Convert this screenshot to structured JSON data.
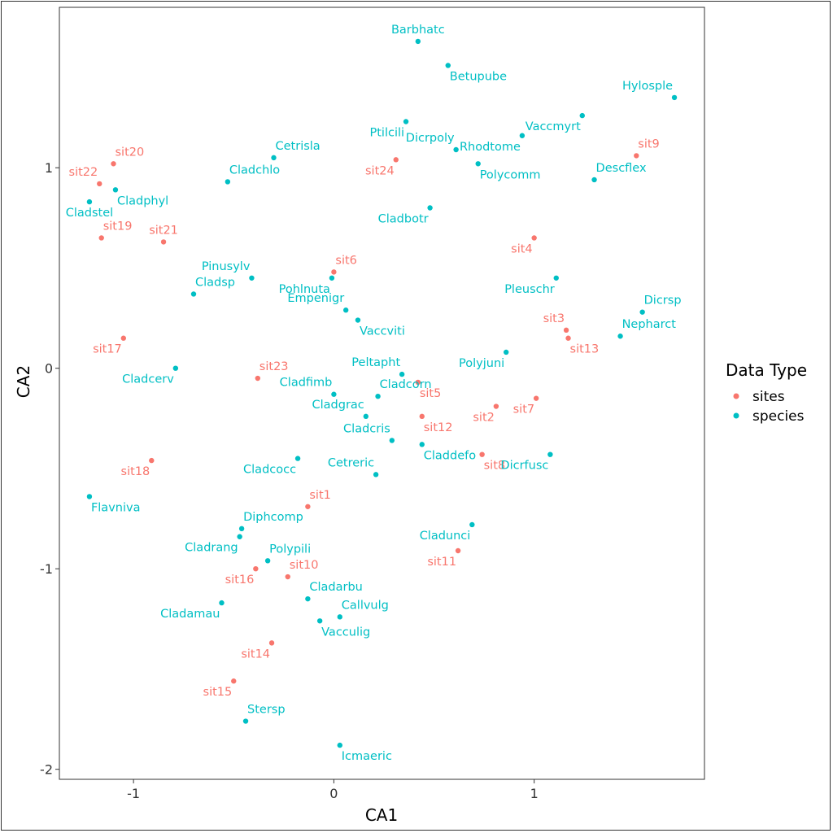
{
  "chart_data": {
    "type": "scatter",
    "title": "",
    "xlabel": "CA1",
    "ylabel": "CA2",
    "xlim": [
      -1.37,
      1.85
    ],
    "ylim": [
      -2.05,
      1.8
    ],
    "x_ticks": [
      -1,
      0,
      1
    ],
    "x_tick_labels": [
      "-1",
      "0",
      "1"
    ],
    "y_ticks": [
      -2,
      -1,
      0,
      1
    ],
    "y_tick_labels": [
      "-2",
      "-1",
      "0",
      "1"
    ],
    "grid": false,
    "legend": {
      "title": "Data Type",
      "placement": "right",
      "entries": [
        {
          "label": "sites",
          "color": "#f8766d"
        },
        {
          "label": "species",
          "color": "#00bfc4"
        }
      ]
    },
    "series": [
      {
        "name": "sites",
        "color": "#f8766d",
        "points": [
          {
            "label": "sit20",
            "x": -1.1,
            "y": 1.02,
            "label_pos": "above-right"
          },
          {
            "label": "sit22",
            "x": -1.17,
            "y": 0.92,
            "label_pos": "above-left"
          },
          {
            "label": "sit19",
            "x": -1.16,
            "y": 0.65,
            "label_pos": "above-right"
          },
          {
            "label": "sit21",
            "x": -0.85,
            "y": 0.63,
            "label_pos": "above"
          },
          {
            "label": "sit24",
            "x": 0.31,
            "y": 1.04,
            "label_pos": "below-left"
          },
          {
            "label": "sit9",
            "x": 1.51,
            "y": 1.06,
            "label_pos": "above-right"
          },
          {
            "label": "sit4",
            "x": 1.0,
            "y": 0.65,
            "label_pos": "below-left"
          },
          {
            "label": "sit6",
            "x": 0.0,
            "y": 0.48,
            "label_pos": "above-right"
          },
          {
            "label": "sit3",
            "x": 1.16,
            "y": 0.19,
            "label_pos": "above-left"
          },
          {
            "label": "sit13",
            "x": 1.17,
            "y": 0.15,
            "label_pos": "below-right"
          },
          {
            "label": "sit17",
            "x": -1.05,
            "y": 0.15,
            "label_pos": "below-left"
          },
          {
            "label": "sit23",
            "x": -0.38,
            "y": -0.05,
            "label_pos": "above-right"
          },
          {
            "label": "sit5",
            "x": 0.42,
            "y": -0.07,
            "label_pos": "below-right"
          },
          {
            "label": "sit7",
            "x": 1.01,
            "y": -0.15,
            "label_pos": "below-left"
          },
          {
            "label": "sit2",
            "x": 0.81,
            "y": -0.19,
            "label_pos": "below-left"
          },
          {
            "label": "sit12",
            "x": 0.44,
            "y": -0.24,
            "label_pos": "below-right"
          },
          {
            "label": "sit8",
            "x": 0.74,
            "y": -0.43,
            "label_pos": "below-right"
          },
          {
            "label": "sit18",
            "x": -0.91,
            "y": -0.46,
            "label_pos": "below-left"
          },
          {
            "label": "sit1",
            "x": -0.13,
            "y": -0.69,
            "label_pos": "above-right"
          },
          {
            "label": "sit11",
            "x": 0.62,
            "y": -0.91,
            "label_pos": "below-left"
          },
          {
            "label": "sit10",
            "x": -0.23,
            "y": -1.04,
            "label_pos": "above-right"
          },
          {
            "label": "sit16",
            "x": -0.39,
            "y": -1.0,
            "label_pos": "below-left"
          },
          {
            "label": "sit14",
            "x": -0.31,
            "y": -1.37,
            "label_pos": "below-left"
          },
          {
            "label": "sit15",
            "x": -0.5,
            "y": -1.56,
            "label_pos": "below-left"
          }
        ]
      },
      {
        "name": "species",
        "color": "#00bfc4",
        "points": [
          {
            "label": "Barbhatc",
            "x": 0.42,
            "y": 1.63,
            "label_pos": "above"
          },
          {
            "label": "Betupube",
            "x": 0.57,
            "y": 1.51,
            "label_pos": "below-right"
          },
          {
            "label": "Hylosple",
            "x": 1.7,
            "y": 1.35,
            "label_pos": "above-left"
          },
          {
            "label": "Ptilcili",
            "x": 0.36,
            "y": 1.23,
            "label_pos": "below-left"
          },
          {
            "label": "Vaccmyrt",
            "x": 1.24,
            "y": 1.26,
            "label_pos": "below-left"
          },
          {
            "label": "Rhodtome",
            "x": 0.94,
            "y": 1.16,
            "label_pos": "below-left"
          },
          {
            "label": "Dicrpoly",
            "x": 0.61,
            "y": 1.09,
            "label_pos": "above-left"
          },
          {
            "label": "Polycomm",
            "x": 0.72,
            "y": 1.02,
            "label_pos": "below-right"
          },
          {
            "label": "Descflex",
            "x": 1.3,
            "y": 0.94,
            "label_pos": "above-right"
          },
          {
            "label": "Cetrisla",
            "x": -0.3,
            "y": 1.05,
            "label_pos": "above-right"
          },
          {
            "label": "Cladchlo",
            "x": -0.53,
            "y": 0.93,
            "label_pos": "above-right"
          },
          {
            "label": "Cladphyl",
            "x": -1.09,
            "y": 0.89,
            "label_pos": "below-right"
          },
          {
            "label": "Cladstel",
            "x": -1.22,
            "y": 0.83,
            "label_pos": "below"
          },
          {
            "label": "Cladbotr",
            "x": 0.48,
            "y": 0.8,
            "label_pos": "below-left"
          },
          {
            "label": "Pinusylv",
            "x": -0.41,
            "y": 0.45,
            "label_pos": "above-left"
          },
          {
            "label": "Pohlnuta",
            "x": -0.01,
            "y": 0.45,
            "label_pos": "below-left"
          },
          {
            "label": "Pleuschr",
            "x": 1.11,
            "y": 0.45,
            "label_pos": "below-left"
          },
          {
            "label": "Cladsp",
            "x": -0.7,
            "y": 0.37,
            "label_pos": "above-right"
          },
          {
            "label": "Empenigr",
            "x": 0.06,
            "y": 0.29,
            "label_pos": "above-left"
          },
          {
            "label": "Dicrsp",
            "x": 1.54,
            "y": 0.28,
            "label_pos": "above-right"
          },
          {
            "label": "Vaccviti",
            "x": 0.12,
            "y": 0.24,
            "label_pos": "below-right"
          },
          {
            "label": "Nepharct",
            "x": 1.43,
            "y": 0.16,
            "label_pos": "above-right"
          },
          {
            "label": "Polyjuni",
            "x": 0.86,
            "y": 0.08,
            "label_pos": "below-left"
          },
          {
            "label": "Cladcerv",
            "x": -0.79,
            "y": 0.0,
            "label_pos": "below-left"
          },
          {
            "label": "Peltapht",
            "x": 0.34,
            "y": -0.03,
            "label_pos": "above-left"
          },
          {
            "label": "Cladfimb",
            "x": 0.0,
            "y": -0.13,
            "label_pos": "above-left"
          },
          {
            "label": "Cladcorn",
            "x": 0.22,
            "y": -0.14,
            "label_pos": "above-right"
          },
          {
            "label": "Cladgrac",
            "x": 0.16,
            "y": -0.24,
            "label_pos": "above-left"
          },
          {
            "label": "Cladcris",
            "x": 0.29,
            "y": -0.36,
            "label_pos": "above-left"
          },
          {
            "label": "Claddefo",
            "x": 0.44,
            "y": -0.38,
            "label_pos": "below-right"
          },
          {
            "label": "Dicrfusc",
            "x": 1.08,
            "y": -0.43,
            "label_pos": "below-left"
          },
          {
            "label": "Cladcocc",
            "x": -0.18,
            "y": -0.45,
            "label_pos": "below-left"
          },
          {
            "label": "Cetreric",
            "x": 0.21,
            "y": -0.53,
            "label_pos": "above-left"
          },
          {
            "label": "Flavniva",
            "x": -1.22,
            "y": -0.64,
            "label_pos": "below-right"
          },
          {
            "label": "Cladunci",
            "x": 0.69,
            "y": -0.78,
            "label_pos": "below-left"
          },
          {
            "label": "Diphcomp",
            "x": -0.46,
            "y": -0.8,
            "label_pos": "above-right"
          },
          {
            "label": "Cladrang",
            "x": -0.47,
            "y": -0.84,
            "label_pos": "below-left"
          },
          {
            "label": "Polypili",
            "x": -0.33,
            "y": -0.96,
            "label_pos": "above-right"
          },
          {
            "label": "Cladarbu",
            "x": -0.13,
            "y": -1.15,
            "label_pos": "above-right"
          },
          {
            "label": "Cladamau",
            "x": -0.56,
            "y": -1.17,
            "label_pos": "below-left"
          },
          {
            "label": "Callvulg",
            "x": 0.03,
            "y": -1.24,
            "label_pos": "above-right"
          },
          {
            "label": "Vacculig",
            "x": -0.07,
            "y": -1.26,
            "label_pos": "below-right"
          },
          {
            "label": "Stersp",
            "x": -0.44,
            "y": -1.76,
            "label_pos": "above-right"
          },
          {
            "label": "Icmaeric",
            "x": 0.03,
            "y": -1.88,
            "label_pos": "below-right"
          }
        ]
      }
    ]
  }
}
